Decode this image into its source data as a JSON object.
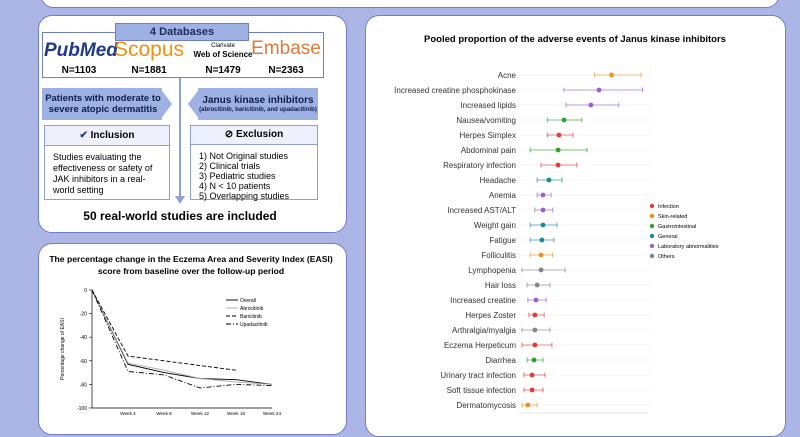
{
  "flowchart": {
    "databases_title": "4 Databases",
    "databases": [
      {
        "name": "PubMed",
        "n": "N=1103"
      },
      {
        "name": "Scopus",
        "n": "N=1881"
      },
      {
        "name": "Web of Science",
        "brand": "Clarivate",
        "n": "N=1479"
      },
      {
        "name": "Embase",
        "n": "N=2363"
      }
    ],
    "population": "Patients with moderate to severe atopic dermatitis",
    "intervention": "Janus kinase inhibitors",
    "intervention_detail": "(abrocitinib, baricitinib, and upadacitinib)",
    "inclusion_title": "Inclusion",
    "inclusion_text": "Studies evaluating the effectiveness or safety of JAK inhibitors in a real-world setting",
    "exclusion_title": "Exclusion",
    "exclusion_items": [
      "1) Not Original studies",
      "2) Clinical trials",
      "3) Pediatric studies",
      "4) N < 10 patients",
      "5) Overlapping studies"
    ],
    "result": "50 real-world studies are included"
  },
  "chart_data": [
    {
      "type": "line",
      "title": "The percentage change in the Eczema Area and Severity Index (EASI) score from baseline over the follow-up period",
      "y_label": "Percentage change of EASI",
      "categories": [
        null,
        "Week 4",
        "Week 8",
        "Week 12",
        "Week 16",
        "Week 24"
      ],
      "ylim": [
        -100,
        0
      ],
      "yticks": [
        0,
        -20,
        -40,
        -60,
        -80,
        -100
      ],
      "series": [
        {
          "name": "Overall",
          "color": "#000000",
          "style": "solid",
          "values": [
            0,
            -63,
            -70,
            -75,
            -76,
            -80
          ]
        },
        {
          "name": "Abrocitinib",
          "color": "#aaaaaa",
          "style": "solid",
          "values": [
            0,
            -62,
            -68,
            -75,
            -78,
            -80
          ]
        },
        {
          "name": "Baricitinib",
          "color": "#000000",
          "style": "dashed",
          "values": [
            0,
            -56,
            -60,
            -64,
            -68,
            null
          ]
        },
        {
          "name": "Upadacitinib",
          "color": "#000000",
          "style": "dashdot",
          "values": [
            0,
            -69,
            -72,
            -83,
            -80,
            -81
          ]
        }
      ]
    },
    {
      "type": "forest",
      "title": "Pooled proportion of the adverse events of Janus kinase inhibitors",
      "categories": [
        "Acne",
        "Increased creatine phosphokinase",
        "Increased lipids",
        "Nausea/vomiting",
        "Herpes Simplex",
        "Abdominal pain",
        "Respiratory infection",
        "Headache",
        "Anemia",
        "Increased AST/ALT",
        "Weight gain",
        "Fatigue",
        "Folliculitis",
        "Lymphopenia",
        "Hair loss",
        "Increased creatine",
        "Herpes Zoster",
        "Arthralgia/myalgia",
        "Eczema Herpeticum",
        "Diarrhea",
        "Urinary tract infection",
        "Soft tissue infection",
        "Dermatomycosis"
      ],
      "values": [
        32,
        27.5,
        24.6,
        15,
        13.2,
        12.9,
        12.9,
        9.6,
        7.5,
        7.5,
        7.5,
        7.1,
        6.8,
        6.8,
        5.4,
        5,
        4.6,
        4.6,
        4.6,
        4.3,
        3.6,
        3.6,
        2.1
      ],
      "ci_lower": [
        26,
        15,
        15.7,
        9,
        9,
        2.9,
        6.8,
        5.4,
        5.4,
        4.6,
        2.9,
        2.9,
        2.9,
        0,
        1.8,
        2.1,
        2.5,
        0,
        0,
        1.8,
        0.7,
        0.7,
        0
      ],
      "ci_upper": [
        42.5,
        43,
        34.6,
        21.4,
        18.2,
        23.2,
        19.6,
        14.3,
        10.4,
        11,
        12.5,
        11.4,
        11,
        15.4,
        10,
        8.6,
        7.9,
        10,
        10.7,
        7.5,
        8.2,
        7.5,
        5.4
      ],
      "group": [
        1,
        4,
        4,
        2,
        0,
        2,
        0,
        3,
        4,
        4,
        3,
        3,
        1,
        5,
        5,
        4,
        0,
        5,
        0,
        2,
        0,
        0,
        1
      ],
      "xlim": [
        0,
        45
      ],
      "legend": [
        {
          "name": "Infection",
          "color": "#e03a3a"
        },
        {
          "name": "Skin-related",
          "color": "#f0901a"
        },
        {
          "name": "Gastrointestinal",
          "color": "#2ea02e"
        },
        {
          "name": "General",
          "color": "#1a8a9a"
        },
        {
          "name": "Laboratory abnormalities",
          "color": "#9b5fd4"
        },
        {
          "name": "Others",
          "color": "#858585"
        }
      ]
    }
  ]
}
